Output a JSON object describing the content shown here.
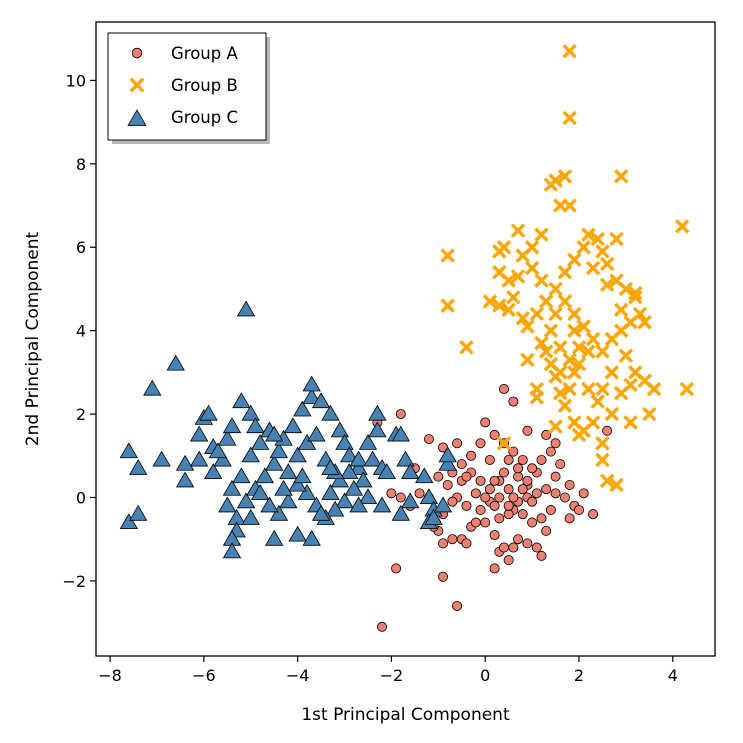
{
  "chart_data": {
    "type": "scatter",
    "xlabel": "1st Principal Component",
    "ylabel": "2nd Principal Component",
    "xlim": [
      -8.3,
      4.9
    ],
    "ylim": [
      -3.8,
      11.4
    ],
    "xticks": [
      -8,
      -6,
      -4,
      -2,
      0,
      2,
      4
    ],
    "yticks": [
      -2,
      0,
      2,
      4,
      6,
      8,
      10
    ],
    "grid": false,
    "legend_position": "top-left",
    "series": [
      {
        "name": "Group A",
        "marker": "circle",
        "color": "#f07f70",
        "points": [
          [
            -2.2,
            -3.1
          ],
          [
            -0.6,
            -2.6
          ],
          [
            -1.9,
            -1.7
          ],
          [
            -0.9,
            -1.9
          ],
          [
            -1.0,
            -0.8
          ],
          [
            -0.9,
            -1.1
          ],
          [
            -0.7,
            -1.0
          ],
          [
            -0.5,
            -1.0
          ],
          [
            -0.4,
            -1.1
          ],
          [
            -0.3,
            -0.7
          ],
          [
            -0.1,
            -0.3
          ],
          [
            0.0,
            -0.6
          ],
          [
            0.2,
            -0.9
          ],
          [
            0.2,
            -1.7
          ],
          [
            0.3,
            -1.3
          ],
          [
            0.4,
            -1.2
          ],
          [
            0.5,
            -1.5
          ],
          [
            0.6,
            -1.2
          ],
          [
            0.7,
            -1.0
          ],
          [
            0.9,
            -1.1
          ],
          [
            1.1,
            -1.2
          ],
          [
            1.2,
            -1.4
          ],
          [
            1.3,
            -0.8
          ],
          [
            1.0,
            -0.6
          ],
          [
            0.8,
            -0.4
          ],
          [
            0.6,
            -0.3
          ],
          [
            0.5,
            -0.4
          ],
          [
            0.3,
            -0.5
          ],
          [
            0.1,
            -0.1
          ],
          [
            -0.2,
            0.1
          ],
          [
            -0.4,
            -0.2
          ],
          [
            -0.6,
            0.0
          ],
          [
            -0.8,
            0.3
          ],
          [
            -1.0,
            0.5
          ],
          [
            -1.2,
            0.0
          ],
          [
            -1.4,
            0.1
          ],
          [
            -1.6,
            -0.2
          ],
          [
            -1.8,
            0.0
          ],
          [
            -2.0,
            0.1
          ],
          [
            -2.3,
            1.8
          ],
          [
            -1.8,
            2.0
          ],
          [
            -1.5,
            0.7
          ],
          [
            -1.2,
            1.4
          ],
          [
            -0.9,
            1.2
          ],
          [
            -0.7,
            0.6
          ],
          [
            -0.5,
            0.8
          ],
          [
            -0.3,
            1.0
          ],
          [
            -0.1,
            1.3
          ],
          [
            0.1,
            0.9
          ],
          [
            0.3,
            0.4
          ],
          [
            0.5,
            0.2
          ],
          [
            0.7,
            0.5
          ],
          [
            0.9,
            0.3
          ],
          [
            1.1,
            0.6
          ],
          [
            1.3,
            0.2
          ],
          [
            1.5,
            0.5
          ],
          [
            1.7,
            0.0
          ],
          [
            1.9,
            -0.2
          ],
          [
            2.1,
            0.1
          ],
          [
            2.3,
            -0.4
          ],
          [
            2.0,
            -0.3
          ],
          [
            1.8,
            0.3
          ],
          [
            1.6,
            0.8
          ],
          [
            1.4,
            1.1
          ],
          [
            1.2,
            0.9
          ],
          [
            1.0,
            0.7
          ],
          [
            0.8,
            0.9
          ],
          [
            0.6,
            1.1
          ],
          [
            0.4,
            1.3
          ],
          [
            0.2,
            1.5
          ],
          [
            0.0,
            1.8
          ],
          [
            0.4,
            2.6
          ],
          [
            0.6,
            2.3
          ],
          [
            0.9,
            1.6
          ],
          [
            1.3,
            1.5
          ],
          [
            1.5,
            0.1
          ],
          [
            0.9,
            0.0
          ],
          [
            0.7,
            -0.1
          ],
          [
            0.5,
            -0.2
          ],
          [
            0.3,
            0.0
          ],
          [
            0.1,
            0.2
          ],
          [
            -0.1,
            0.4
          ],
          [
            -0.3,
            0.6
          ],
          [
            -0.5,
            0.4
          ],
          [
            -0.7,
            -0.1
          ],
          [
            -0.9,
            -0.4
          ],
          [
            -1.1,
            -0.7
          ],
          [
            -0.4,
            0.5
          ],
          [
            0.0,
            0.0
          ],
          [
            0.2,
            -0.2
          ],
          [
            0.4,
            0.6
          ],
          [
            0.6,
            0.0
          ],
          [
            0.8,
            0.2
          ],
          [
            1.0,
            -0.1
          ],
          [
            1.2,
            -0.5
          ],
          [
            1.4,
            -0.3
          ],
          [
            2.6,
            1.6
          ],
          [
            1.8,
            -0.5
          ],
          [
            1.5,
            1.3
          ],
          [
            -0.2,
            -0.6
          ],
          [
            0.2,
            0.4
          ],
          [
            0.5,
            0.9
          ],
          [
            0.9,
            0.4
          ],
          [
            1.1,
            0.1
          ],
          [
            0.7,
            0.7
          ],
          [
            -0.6,
            1.3
          ]
        ]
      },
      {
        "name": "Group B",
        "marker": "x",
        "color": "#ffa500",
        "points": [
          [
            1.8,
            10.7
          ],
          [
            1.8,
            9.1
          ],
          [
            2.9,
            7.7
          ],
          [
            1.5,
            7.6
          ],
          [
            1.7,
            7.7
          ],
          [
            1.4,
            7.5
          ],
          [
            1.6,
            7.0
          ],
          [
            1.8,
            7.0
          ],
          [
            2.2,
            6.3
          ],
          [
            4.2,
            6.5
          ],
          [
            0.3,
            5.9
          ],
          [
            0.4,
            6.0
          ],
          [
            0.3,
            5.4
          ],
          [
            0.5,
            5.2
          ],
          [
            0.7,
            5.3
          ],
          [
            0.6,
            4.8
          ],
          [
            0.3,
            4.6
          ],
          [
            0.5,
            4.5
          ],
          [
            0.8,
            4.3
          ],
          [
            -0.8,
            5.8
          ],
          [
            -0.8,
            4.6
          ],
          [
            -0.4,
            3.6
          ],
          [
            0.9,
            3.3
          ],
          [
            1.2,
            3.7
          ],
          [
            1.4,
            3.2
          ],
          [
            1.5,
            2.9
          ],
          [
            1.1,
            2.6
          ],
          [
            1.7,
            2.2
          ],
          [
            1.9,
            1.8
          ],
          [
            2.1,
            1.6
          ],
          [
            2.4,
            2.3
          ],
          [
            2.5,
            2.6
          ],
          [
            2.7,
            3.0
          ],
          [
            2.9,
            2.5
          ],
          [
            3.1,
            2.7
          ],
          [
            3.2,
            3.0
          ],
          [
            3.4,
            2.8
          ],
          [
            3.6,
            2.6
          ],
          [
            3.5,
            2.0
          ],
          [
            3.1,
            1.8
          ],
          [
            2.5,
            1.3
          ],
          [
            2.5,
            0.9
          ],
          [
            2.6,
            0.4
          ],
          [
            2.8,
            0.3
          ],
          [
            2.0,
            1.5
          ],
          [
            1.6,
            2.5
          ],
          [
            1.8,
            2.6
          ],
          [
            1.9,
            3.0
          ],
          [
            2.0,
            3.2
          ],
          [
            2.2,
            3.5
          ],
          [
            2.3,
            3.8
          ],
          [
            2.5,
            3.5
          ],
          [
            2.7,
            3.8
          ],
          [
            2.9,
            4.0
          ],
          [
            3.1,
            4.2
          ],
          [
            3.3,
            4.4
          ],
          [
            3.2,
            4.8
          ],
          [
            3.0,
            5.0
          ],
          [
            2.8,
            5.2
          ],
          [
            2.6,
            5.6
          ],
          [
            2.5,
            5.9
          ],
          [
            2.4,
            6.2
          ],
          [
            2.8,
            6.2
          ],
          [
            2.1,
            6.0
          ],
          [
            1.9,
            5.7
          ],
          [
            1.7,
            5.4
          ],
          [
            1.5,
            5.0
          ],
          [
            1.3,
            4.7
          ],
          [
            1.1,
            4.4
          ],
          [
            0.9,
            4.1
          ],
          [
            1.5,
            4.4
          ],
          [
            1.7,
            4.7
          ],
          [
            1.9,
            4.4
          ],
          [
            2.1,
            4.1
          ],
          [
            2.0,
            3.6
          ],
          [
            1.8,
            3.3
          ],
          [
            1.6,
            3.6
          ],
          [
            1.4,
            4.0
          ],
          [
            1.2,
            5.2
          ],
          [
            1.0,
            5.5
          ],
          [
            0.8,
            5.8
          ],
          [
            0.7,
            6.4
          ],
          [
            1.0,
            6.0
          ],
          [
            1.2,
            6.3
          ],
          [
            2.3,
            5.5
          ],
          [
            2.6,
            5.1
          ],
          [
            2.9,
            4.5
          ],
          [
            3.2,
            4.9
          ],
          [
            3.0,
            3.4
          ],
          [
            2.7,
            2.0
          ],
          [
            4.3,
            2.6
          ],
          [
            3.4,
            4.2
          ],
          [
            2.3,
            1.8
          ],
          [
            1.5,
            1.7
          ],
          [
            1.9,
            4.0
          ],
          [
            1.3,
            3.5
          ],
          [
            2.2,
            2.6
          ],
          [
            0.4,
            1.3
          ],
          [
            1.1,
            2.4
          ],
          [
            1.6,
            3.0
          ],
          [
            0.1,
            4.7
          ]
        ]
      },
      {
        "name": "Group C",
        "marker": "triangle",
        "color": "#4682b4",
        "points": [
          [
            -5.1,
            4.5
          ],
          [
            -6.6,
            3.2
          ],
          [
            -7.1,
            2.6
          ],
          [
            -7.6,
            1.1
          ],
          [
            -7.4,
            0.7
          ],
          [
            -7.6,
            -0.6
          ],
          [
            -7.4,
            -0.4
          ],
          [
            -6.9,
            0.9
          ],
          [
            -6.4,
            0.8
          ],
          [
            -6.4,
            0.4
          ],
          [
            -6.0,
            1.9
          ],
          [
            -5.9,
            2.0
          ],
          [
            -6.1,
            1.5
          ],
          [
            -5.8,
            1.2
          ],
          [
            -5.6,
            0.9
          ],
          [
            -5.8,
            0.6
          ],
          [
            -5.5,
            1.4
          ],
          [
            -5.4,
            1.7
          ],
          [
            -5.2,
            2.3
          ],
          [
            -5.0,
            2.0
          ],
          [
            -4.9,
            1.7
          ],
          [
            -4.8,
            1.3
          ],
          [
            -5.0,
            1.0
          ],
          [
            -5.2,
            0.5
          ],
          [
            -5.4,
            0.2
          ],
          [
            -5.5,
            -0.2
          ],
          [
            -5.3,
            -0.5
          ],
          [
            -5.1,
            -0.1
          ],
          [
            -4.9,
            0.2
          ],
          [
            -4.7,
            0.5
          ],
          [
            -4.5,
            0.8
          ],
          [
            -4.4,
            1.1
          ],
          [
            -4.3,
            1.4
          ],
          [
            -4.1,
            1.7
          ],
          [
            -3.9,
            2.1
          ],
          [
            -3.7,
            2.4
          ],
          [
            -3.7,
            2.7
          ],
          [
            -3.5,
            2.3
          ],
          [
            -3.3,
            2.0
          ],
          [
            -3.1,
            1.6
          ],
          [
            -3.0,
            1.3
          ],
          [
            -2.9,
            1.0
          ],
          [
            -2.7,
            0.7
          ],
          [
            -2.6,
            0.4
          ],
          [
            -2.8,
            0.2
          ],
          [
            -3.0,
            -0.1
          ],
          [
            -3.2,
            -0.3
          ],
          [
            -3.4,
            -0.5
          ],
          [
            -3.6,
            -0.2
          ],
          [
            -3.8,
            0.1
          ],
          [
            -4.0,
            0.3
          ],
          [
            -4.2,
            -0.1
          ],
          [
            -4.4,
            -0.4
          ],
          [
            -4.6,
            -0.2
          ],
          [
            -4.8,
            0.1
          ],
          [
            -5.0,
            -0.5
          ],
          [
            -5.3,
            -0.8
          ],
          [
            -5.4,
            -1.0
          ],
          [
            -5.4,
            -1.3
          ],
          [
            -4.5,
            -1.0
          ],
          [
            -4.0,
            -0.9
          ],
          [
            -3.7,
            -1.0
          ],
          [
            -3.5,
            -0.4
          ],
          [
            -3.3,
            0.1
          ],
          [
            -3.1,
            0.4
          ],
          [
            -2.9,
            0.6
          ],
          [
            -2.7,
            0.9
          ],
          [
            -2.5,
            1.3
          ],
          [
            -2.3,
            1.6
          ],
          [
            -2.4,
            0.9
          ],
          [
            -2.2,
            0.7
          ],
          [
            -2.5,
            0.0
          ],
          [
            -2.7,
            -0.2
          ],
          [
            -1.9,
            1.5
          ],
          [
            -1.8,
            1.5
          ],
          [
            -1.7,
            0.9
          ],
          [
            -1.6,
            0.6
          ],
          [
            -1.3,
            0.5
          ],
          [
            -1.2,
            0.0
          ],
          [
            -1.1,
            -0.3
          ],
          [
            -1.2,
            -0.6
          ],
          [
            -1.1,
            -0.5
          ],
          [
            -0.8,
            0.8
          ],
          [
            -0.8,
            1.0
          ],
          [
            -0.9,
            -0.2
          ],
          [
            -1.6,
            -0.1
          ],
          [
            -1.8,
            -0.4
          ],
          [
            -2.2,
            -0.2
          ],
          [
            -4.2,
            0.6
          ],
          [
            -4.0,
            1.0
          ],
          [
            -3.8,
            1.3
          ],
          [
            -3.6,
            1.5
          ],
          [
            -3.4,
            0.9
          ],
          [
            -3.2,
            0.6
          ],
          [
            -4.6,
            1.6
          ],
          [
            -5.7,
            1.1
          ],
          [
            -6.1,
            0.9
          ],
          [
            -3.9,
            0.5
          ],
          [
            -2.3,
            2.0
          ],
          [
            -3.3,
            0.7
          ],
          [
            -4.3,
            0.2
          ],
          [
            -2.1,
            0.6
          ],
          [
            -4.5,
            1.5
          ]
        ]
      }
    ]
  }
}
